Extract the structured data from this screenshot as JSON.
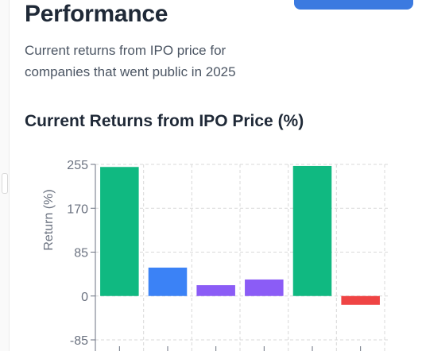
{
  "page": {
    "title": "Performance",
    "subtitle": "Current returns from IPO price for companies that went public in 2025"
  },
  "header": {
    "button_color": "#3b7ae0"
  },
  "chart_data": {
    "type": "bar",
    "title": "Current Returns from IPO Price (%)",
    "xlabel": "",
    "ylabel": "Return (%)",
    "ylim": [
      -85,
      255
    ],
    "yticks": [
      -85,
      0,
      85,
      170,
      255
    ],
    "grid": true,
    "categories": [
      "",
      "",
      "",
      "",
      "",
      ""
    ],
    "values": [
      250,
      55,
      21,
      32,
      252,
      -17
    ],
    "colors": [
      "#10b981",
      "#3b82f6",
      "#8b5cf6",
      "#8b5cf6",
      "#10b981",
      "#ef4444"
    ]
  }
}
